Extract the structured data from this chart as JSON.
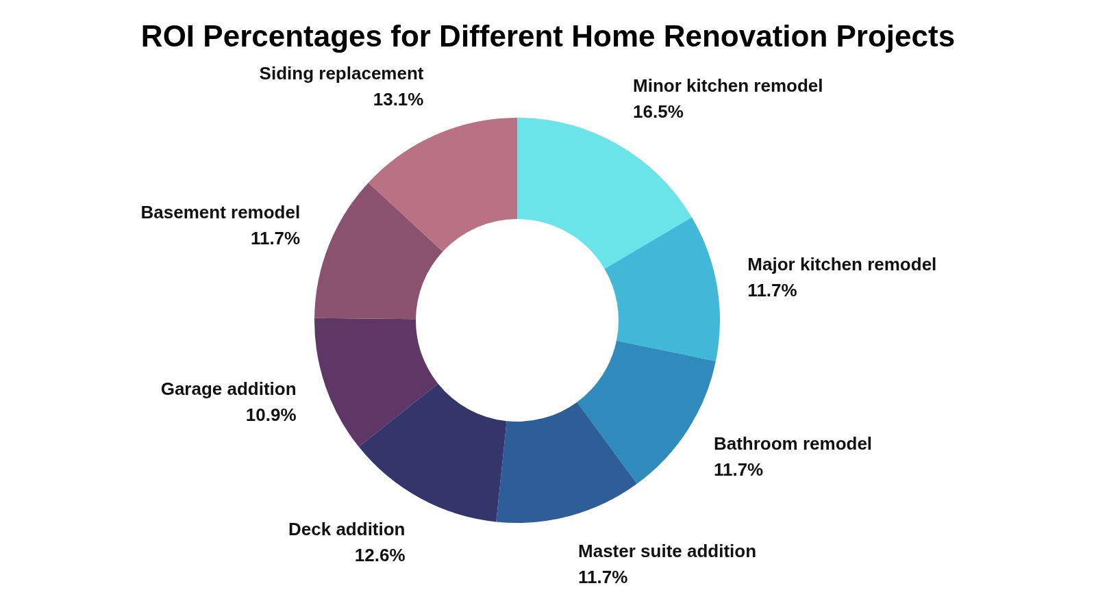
{
  "chart_data": {
    "type": "donut",
    "title": "ROI Percentages for Different Home Renovation Projects",
    "categories": [
      "Minor kitchen remodel",
      "Major kitchen remodel",
      "Bathroom remodel",
      "Master suite addition",
      "Deck addition",
      "Garage addition",
      "Basement remodel",
      "Siding replacement"
    ],
    "values": [
      16.5,
      11.7,
      11.7,
      11.7,
      12.6,
      10.9,
      11.7,
      13.1
    ],
    "value_labels": [
      "16.5%",
      "11.7%",
      "11.7%",
      "11.7%",
      "12.6%",
      "10.9%",
      "11.7%",
      "13.1%"
    ],
    "colors": [
      "#6ae4e9",
      "#42b8d8",
      "#2e8bbb",
      "#2e5e97",
      "#33356b",
      "#5e3766",
      "#8b526f",
      "#b87283"
    ],
    "legend": false
  }
}
